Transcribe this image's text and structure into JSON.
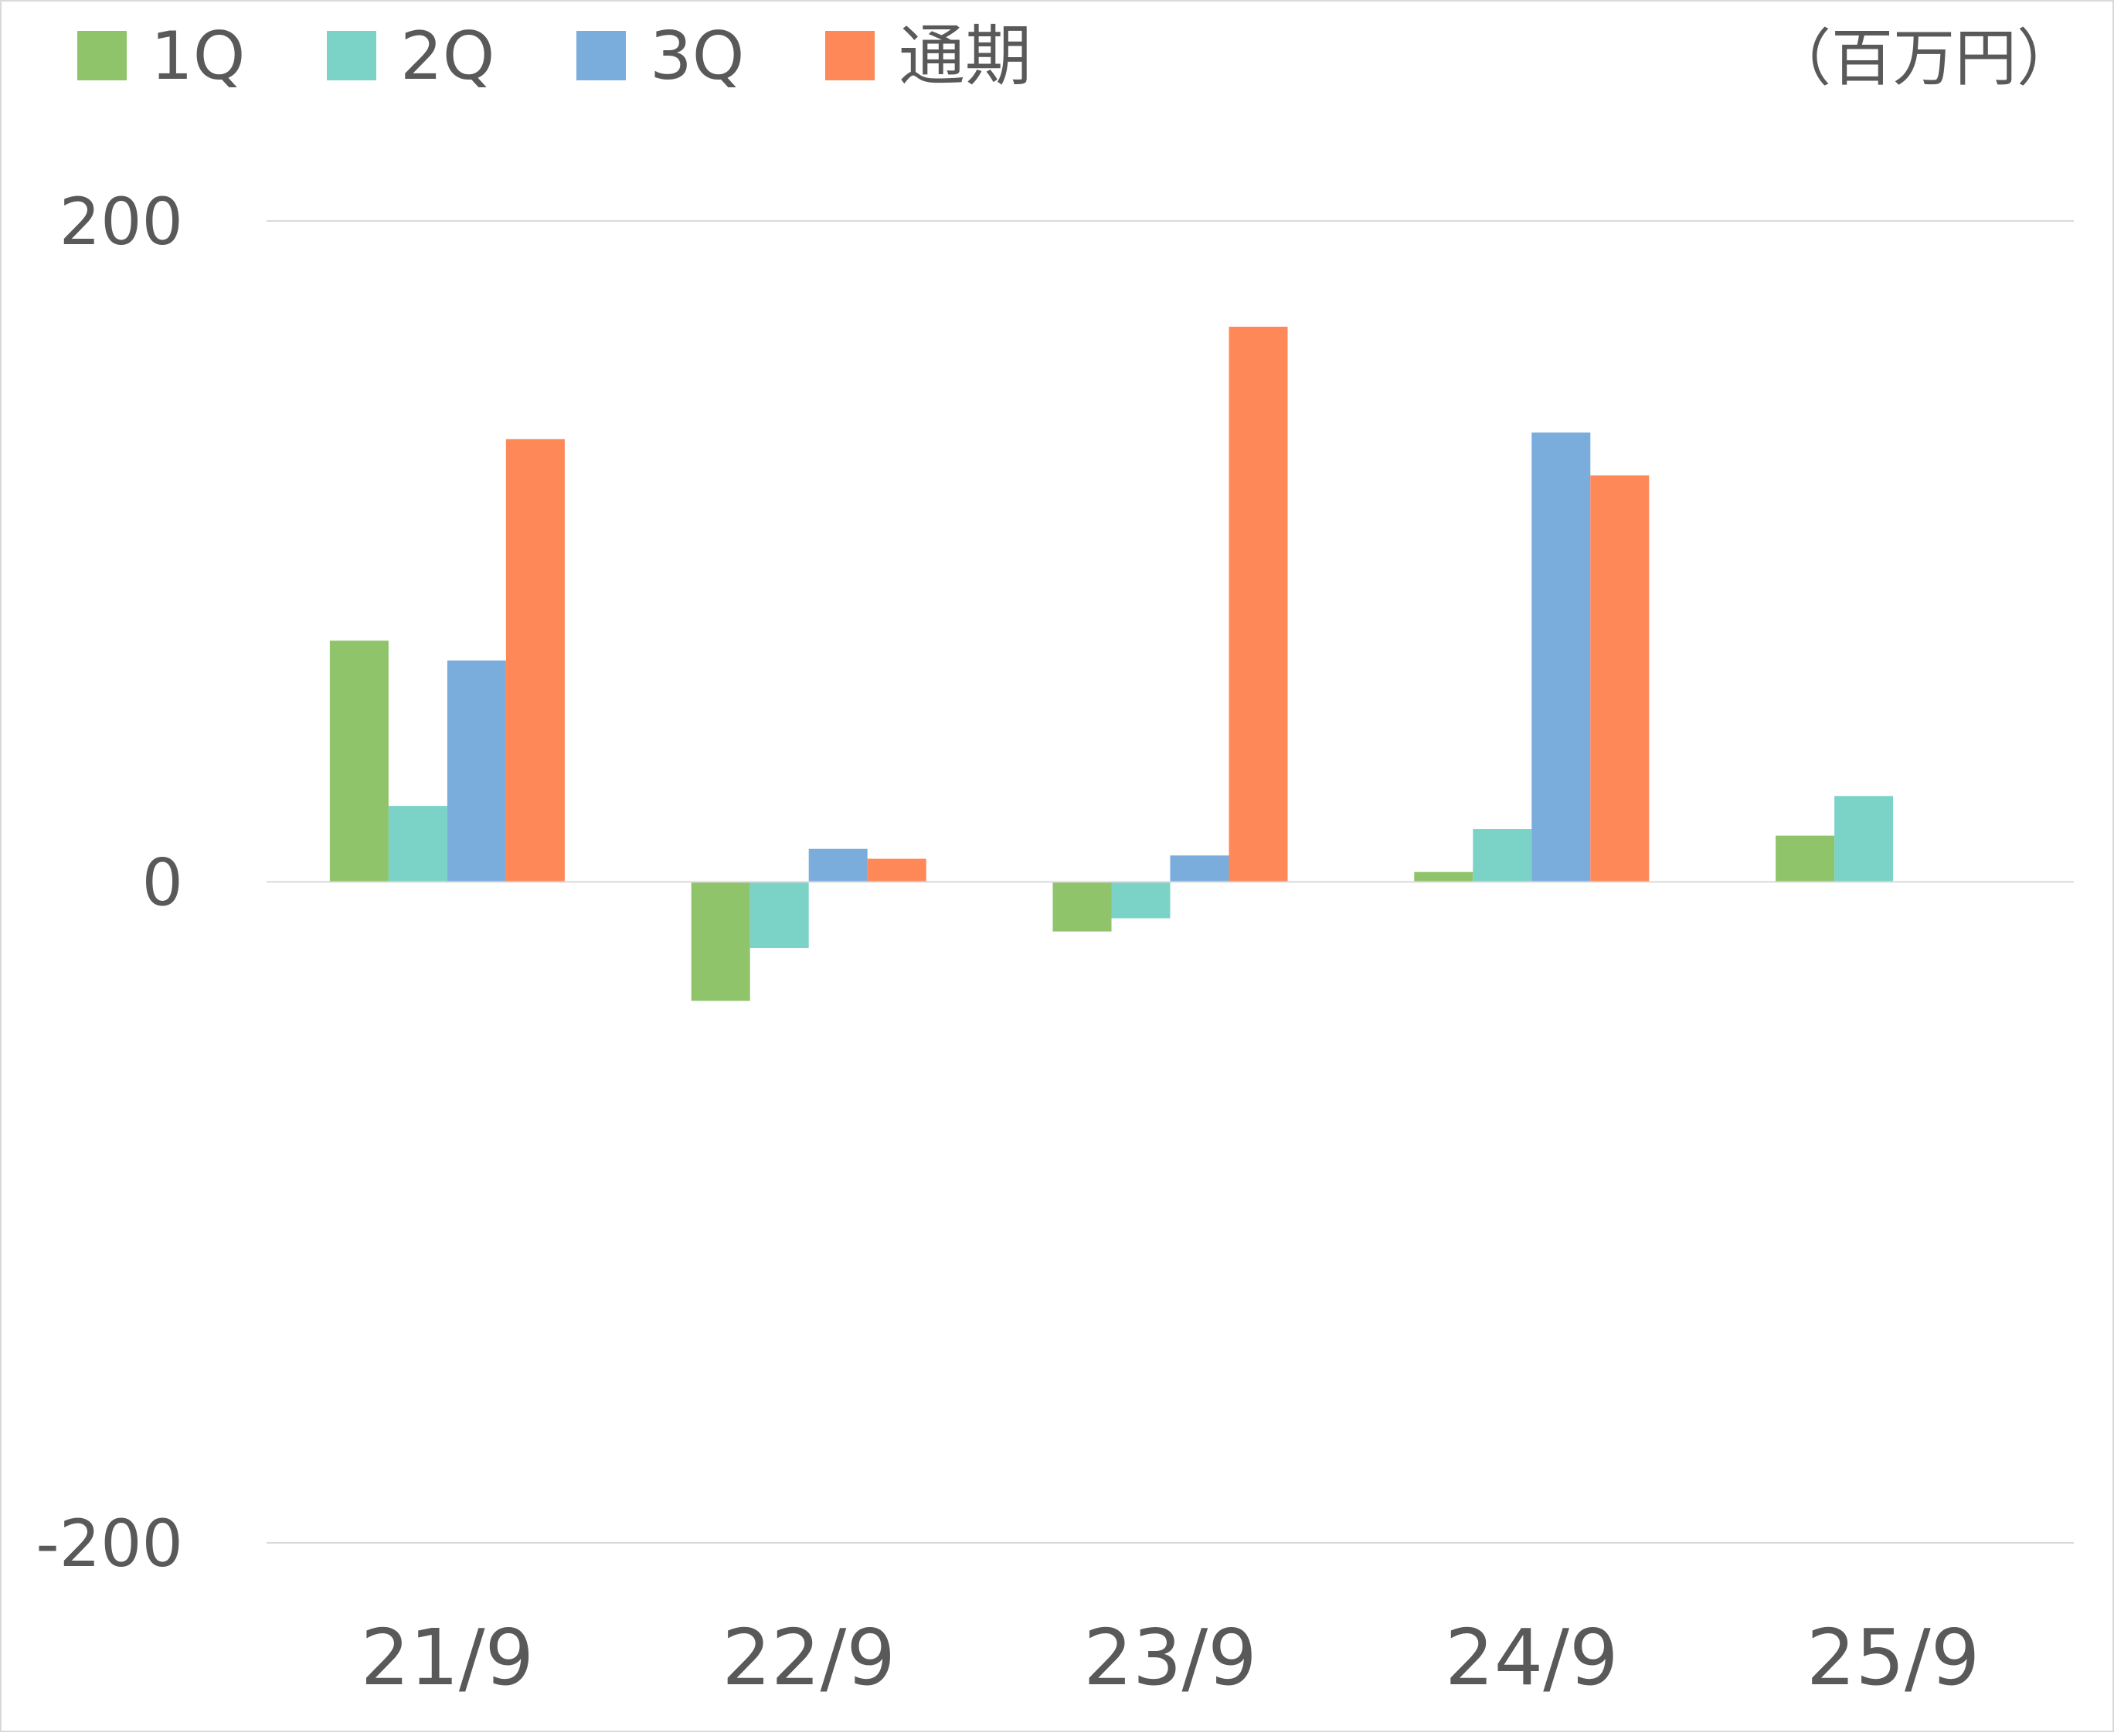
{
  "chart_data": {
    "type": "bar",
    "unit_label": "（百万円）",
    "categories": [
      "21/9",
      "22/9",
      "23/9",
      "24/9",
      "25/9"
    ],
    "series": [
      {
        "name": "1Q",
        "color": "#8fc46a",
        "values": [
          73,
          -36,
          -15,
          3,
          14
        ]
      },
      {
        "name": "2Q",
        "color": "#7bd3c8",
        "values": [
          23,
          -20,
          -11,
          16,
          26
        ]
      },
      {
        "name": "3Q",
        "color": "#7aacdc",
        "values": [
          67,
          10,
          8,
          136,
          null
        ]
      },
      {
        "name": "通期",
        "color": "#ff8858",
        "values": [
          134,
          7,
          168,
          123,
          null
        ]
      }
    ],
    "ylim": [
      -200,
      200
    ],
    "yticks": [
      200,
      0,
      -200
    ],
    "ytick_labels": [
      "200",
      "0",
      "-200"
    ],
    "grid": true,
    "legend_position": "top-left"
  }
}
